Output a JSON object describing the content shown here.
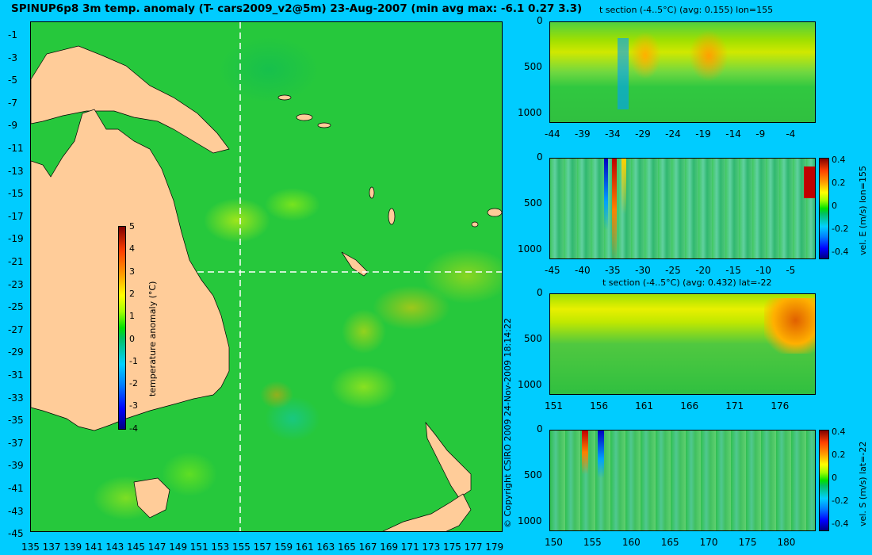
{
  "title": "SPINUP6p8 3m temp. anomaly (T- cars2009_v2@5m) 23-Aug-2007 (min avg max: -6.1 0.27 3.3)",
  "copyright": "© Copyright CSIRO 2009   24-Nov-2009 18:14:22",
  "map": {
    "lat_ticks": [
      "-1",
      "-3",
      "-5",
      "-7",
      "-9",
      "-11",
      "-13",
      "-15",
      "-17",
      "-19",
      "-21",
      "-23",
      "-25",
      "-27",
      "-29",
      "-31",
      "-33",
      "-35",
      "-37",
      "-39",
      "-41",
      "-43",
      "-45"
    ],
    "lon_ticks": [
      "135",
      "137",
      "139",
      "141",
      "143",
      "145",
      "147",
      "149",
      "151",
      "153",
      "155",
      "157",
      "159",
      "161",
      "163",
      "165",
      "167",
      "169",
      "171",
      "173",
      "175",
      "177",
      "179"
    ],
    "section_lon": 155,
    "section_lat": -22,
    "colorbar": {
      "label": "temperature anomaly (°C)",
      "ticks": [
        "5",
        "4",
        "3",
        "2",
        "1",
        "0",
        "-1",
        "-2",
        "-3",
        "-4"
      ]
    }
  },
  "sections": [
    {
      "title": "t section (-4..5°C) (avg: 0.155) lon=155",
      "x_ticks": [
        "-44",
        "-39",
        "-34",
        "-29",
        "-24",
        "-19",
        "-14",
        "-9",
        "-4"
      ],
      "y_ticks": [
        "0",
        "500",
        "1000"
      ]
    },
    {
      "title": "",
      "x_ticks": [
        "-45",
        "-40",
        "-35",
        "-30",
        "-25",
        "-20",
        "-15",
        "-10",
        "-5"
      ],
      "y_ticks": [
        "0",
        "500",
        "1000"
      ],
      "colorbar": {
        "label": "vel. E (m/s) lon=155",
        "ticks": [
          "0.4",
          "0.2",
          "0",
          "-0.2",
          "-0.4"
        ]
      }
    },
    {
      "title": "t section (-4..5°C) (avg: 0.432) lat=-22",
      "x_ticks": [
        "151",
        "156",
        "161",
        "166",
        "171",
        "176"
      ],
      "y_ticks": [
        "0",
        "500",
        "1000"
      ]
    },
    {
      "title": "",
      "x_ticks": [
        "150",
        "155",
        "160",
        "165",
        "170",
        "175",
        "180"
      ],
      "y_ticks": [
        "0",
        "500",
        "1000"
      ],
      "colorbar": {
        "label": "vel. S (m/s) lat=-22",
        "ticks": [
          "0.4",
          "0.2",
          "0",
          "-0.2",
          "-0.4"
        ]
      }
    }
  ]
}
